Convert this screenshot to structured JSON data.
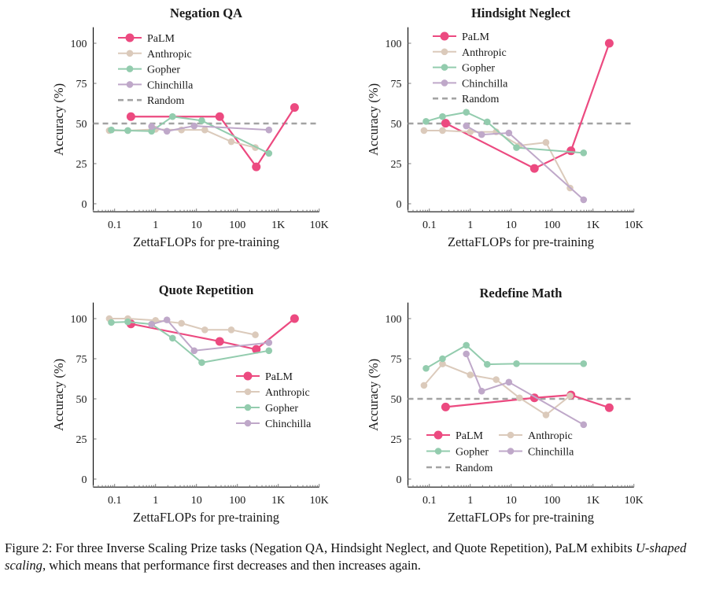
{
  "colors": {
    "PaLM": "#ec4a80",
    "Anthropic": "#dbcabb",
    "Gopher": "#93ccae",
    "Chinchilla": "#bfa8c9",
    "Random": "#a3a3a3"
  },
  "chart_data": [
    {
      "type": "line",
      "title": "Negation QA",
      "xlabel": "ZettaFLOPs for pre-training",
      "ylabel": "Accuracy (%)",
      "xscale": "log",
      "xlim": [
        0.03,
        10000
      ],
      "ylim": [
        -5,
        110
      ],
      "xticks": [
        {
          "v": 0.1,
          "label": "0.1"
        },
        {
          "v": 1,
          "label": "1"
        },
        {
          "v": 10,
          "label": "10"
        },
        {
          "v": 100,
          "label": "100"
        },
        {
          "v": 1000,
          "label": "1K"
        },
        {
          "v": 10000,
          "label": "10K"
        }
      ],
      "yticks": [
        0,
        25,
        50,
        75,
        100
      ],
      "grid": false,
      "legend": {
        "placement": "top-left",
        "columns": 1,
        "entries": [
          "PaLM",
          "Anthropic",
          "Gopher",
          "Chinchilla",
          "Random"
        ]
      },
      "random": 50,
      "series": [
        {
          "name": "PaLM",
          "x": [
            0.25,
            37,
            290,
            2500
          ],
          "y": [
            54.3,
            54.3,
            23,
            60
          ]
        },
        {
          "name": "Anthropic",
          "x": [
            0.074,
            0.21,
            1,
            4.3,
            16,
            71,
            275
          ],
          "y": [
            45.6,
            45.6,
            46.4,
            46,
            46,
            38.7,
            35
          ]
        },
        {
          "name": "Gopher",
          "x": [
            0.083,
            0.21,
            0.8,
            2.6,
            13.5,
            590
          ],
          "y": [
            46,
            45.6,
            45.2,
            54.3,
            51.8,
            31.4
          ]
        },
        {
          "name": "Chinchilla",
          "x": [
            0.8,
            1.9,
            8.8,
            590
          ],
          "y": [
            48.2,
            45.2,
            48.5,
            46
          ]
        }
      ]
    },
    {
      "type": "line",
      "title": "Hindsight Neglect",
      "xlabel": "ZettaFLOPs for pre-training",
      "ylabel": "Accuracy (%)",
      "xscale": "log",
      "xlim": [
        0.03,
        10000
      ],
      "ylim": [
        -5,
        110
      ],
      "xticks": [
        {
          "v": 0.1,
          "label": "0.1"
        },
        {
          "v": 1,
          "label": "1"
        },
        {
          "v": 10,
          "label": "10"
        },
        {
          "v": 100,
          "label": "100"
        },
        {
          "v": 1000,
          "label": "1K"
        },
        {
          "v": 10000,
          "label": "10K"
        }
      ],
      "yticks": [
        0,
        25,
        50,
        75,
        100
      ],
      "grid": false,
      "legend": {
        "placement": "top-left",
        "columns": 1,
        "entries": [
          "PaLM",
          "Anthropic",
          "Gopher",
          "Chinchilla",
          "Random"
        ]
      },
      "random": 50,
      "series": [
        {
          "name": "PaLM",
          "x": [
            0.25,
            37,
            290,
            2500
          ],
          "y": [
            50.2,
            22,
            33,
            100
          ]
        },
        {
          "name": "Anthropic",
          "x": [
            0.074,
            0.21,
            1,
            4.3,
            16,
            71,
            275
          ],
          "y": [
            45.6,
            45.6,
            44.8,
            44.8,
            36.3,
            38.2,
            9.8
          ]
        },
        {
          "name": "Gopher",
          "x": [
            0.083,
            0.21,
            0.8,
            2.6,
            13.5,
            590
          ],
          "y": [
            51.3,
            54.3,
            57,
            51,
            35,
            31.7
          ]
        },
        {
          "name": "Chinchilla",
          "x": [
            0.8,
            1.9,
            8.8,
            590
          ],
          "y": [
            48.5,
            43.1,
            44.1,
            2.5
          ]
        }
      ]
    },
    {
      "type": "line",
      "title": "Quote Repetition",
      "xlabel": "ZettaFLOPs for pre-training",
      "ylabel": "Accuracy (%)",
      "xscale": "log",
      "xlim": [
        0.03,
        10000
      ],
      "ylim": [
        -5,
        110
      ],
      "xticks": [
        {
          "v": 0.1,
          "label": "0.1"
        },
        {
          "v": 1,
          "label": "1"
        },
        {
          "v": 10,
          "label": "10"
        },
        {
          "v": 100,
          "label": "100"
        },
        {
          "v": 1000,
          "label": "1K"
        },
        {
          "v": 10000,
          "label": "10K"
        }
      ],
      "yticks": [
        0,
        25,
        50,
        75,
        100
      ],
      "grid": false,
      "legend": {
        "placement": "center-right",
        "columns": 1,
        "entries": [
          "PaLM",
          "Anthropic",
          "Gopher",
          "Chinchilla"
        ]
      },
      "random": null,
      "series": [
        {
          "name": "PaLM",
          "x": [
            0.25,
            37,
            290,
            2500
          ],
          "y": [
            96.7,
            85.8,
            80.8,
            100
          ]
        },
        {
          "name": "Anthropic",
          "x": [
            0.074,
            0.21,
            1,
            4.3,
            16,
            71,
            275
          ],
          "y": [
            100,
            100,
            98.9,
            97.1,
            93,
            93,
            89.9
          ]
        },
        {
          "name": "Gopher",
          "x": [
            0.083,
            0.21,
            0.8,
            2.6,
            13.5,
            590
          ],
          "y": [
            97.6,
            98,
            96.5,
            87.8,
            72.6,
            80
          ]
        },
        {
          "name": "Chinchilla",
          "x": [
            0.8,
            1.9,
            8.8,
            590
          ],
          "y": [
            96.4,
            99.2,
            80,
            85
          ]
        }
      ]
    },
    {
      "type": "line",
      "title": "Redefine Math",
      "xlabel": "ZettaFLOPs for pre-training",
      "ylabel": "Accuracy (%)",
      "xscale": "log",
      "xlim": [
        0.03,
        10000
      ],
      "ylim": [
        -5,
        110
      ],
      "xticks": [
        {
          "v": 0.1,
          "label": "0.1"
        },
        {
          "v": 1,
          "label": "1"
        },
        {
          "v": 10,
          "label": "10"
        },
        {
          "v": 100,
          "label": "100"
        },
        {
          "v": 1000,
          "label": "1K"
        },
        {
          "v": 10000,
          "label": "10K"
        }
      ],
      "yticks": [
        0,
        25,
        50,
        75,
        100
      ],
      "grid": false,
      "legend": {
        "placement": "bottom-left",
        "columns": 2,
        "entries": [
          "PaLM",
          "Anthropic",
          "Gopher",
          "Chinchilla",
          "Random"
        ]
      },
      "random": 50,
      "series": [
        {
          "name": "PaLM",
          "x": [
            0.25,
            37,
            290,
            2500
          ],
          "y": [
            44.9,
            50.6,
            52.4,
            44.5
          ]
        },
        {
          "name": "Anthropic",
          "x": [
            0.074,
            0.21,
            1,
            4.3,
            16,
            71,
            275
          ],
          "y": [
            58.4,
            71.8,
            64.9,
            62,
            50.6,
            40,
            51.9
          ]
        },
        {
          "name": "Gopher",
          "x": [
            0.083,
            0.21,
            0.8,
            2.6,
            13.5,
            590
          ],
          "y": [
            69,
            75,
            83.4,
            71.5,
            71.9,
            71.9
          ]
        },
        {
          "name": "Chinchilla",
          "x": [
            0.8,
            1.9,
            8.8,
            590
          ],
          "y": [
            78,
            54.8,
            60.4,
            33.9
          ]
        }
      ]
    }
  ],
  "caption": {
    "part1": "Figure 2: For three Inverse Scaling Prize tasks (Negation QA, Hindsight Neglect, and Quote Repetition), PaLM exhibits ",
    "italic": "U-shaped scaling",
    "part2": ", which means that performance first decreases and then increases again."
  }
}
